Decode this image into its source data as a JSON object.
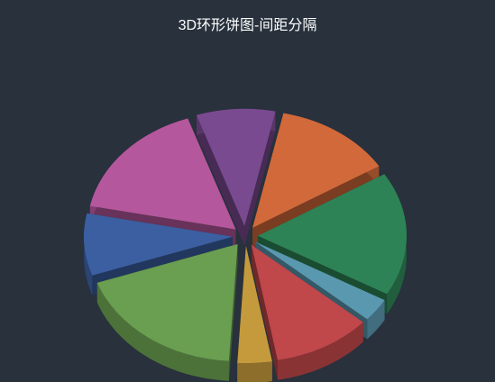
{
  "chart_data": {
    "type": "pie",
    "variant": "3d-exploded",
    "title": "3D环形饼图-间距分隔",
    "series": [
      {
        "name": "",
        "value": 12.0,
        "color": "#d2693a"
      },
      {
        "name": "",
        "value": 16.0,
        "color": "#2d8355"
      },
      {
        "name": "",
        "value": 3.0,
        "color": "#5a98b0"
      },
      {
        "name": "",
        "value": 10.0,
        "color": "#c0474a"
      },
      {
        "name": "",
        "value": 3.5,
        "color": "#c49a3c"
      },
      {
        "name": "",
        "value": 17.5,
        "color": "#6a9e50"
      },
      {
        "name": "",
        "value": 8.0,
        "color": "#3b5fa0"
      },
      {
        "name": "",
        "value": 15.5,
        "color": "#b4579c"
      },
      {
        "name": "",
        "value": 8.0,
        "color": "#7a4a90"
      }
    ],
    "legend": "none",
    "grid": false
  }
}
